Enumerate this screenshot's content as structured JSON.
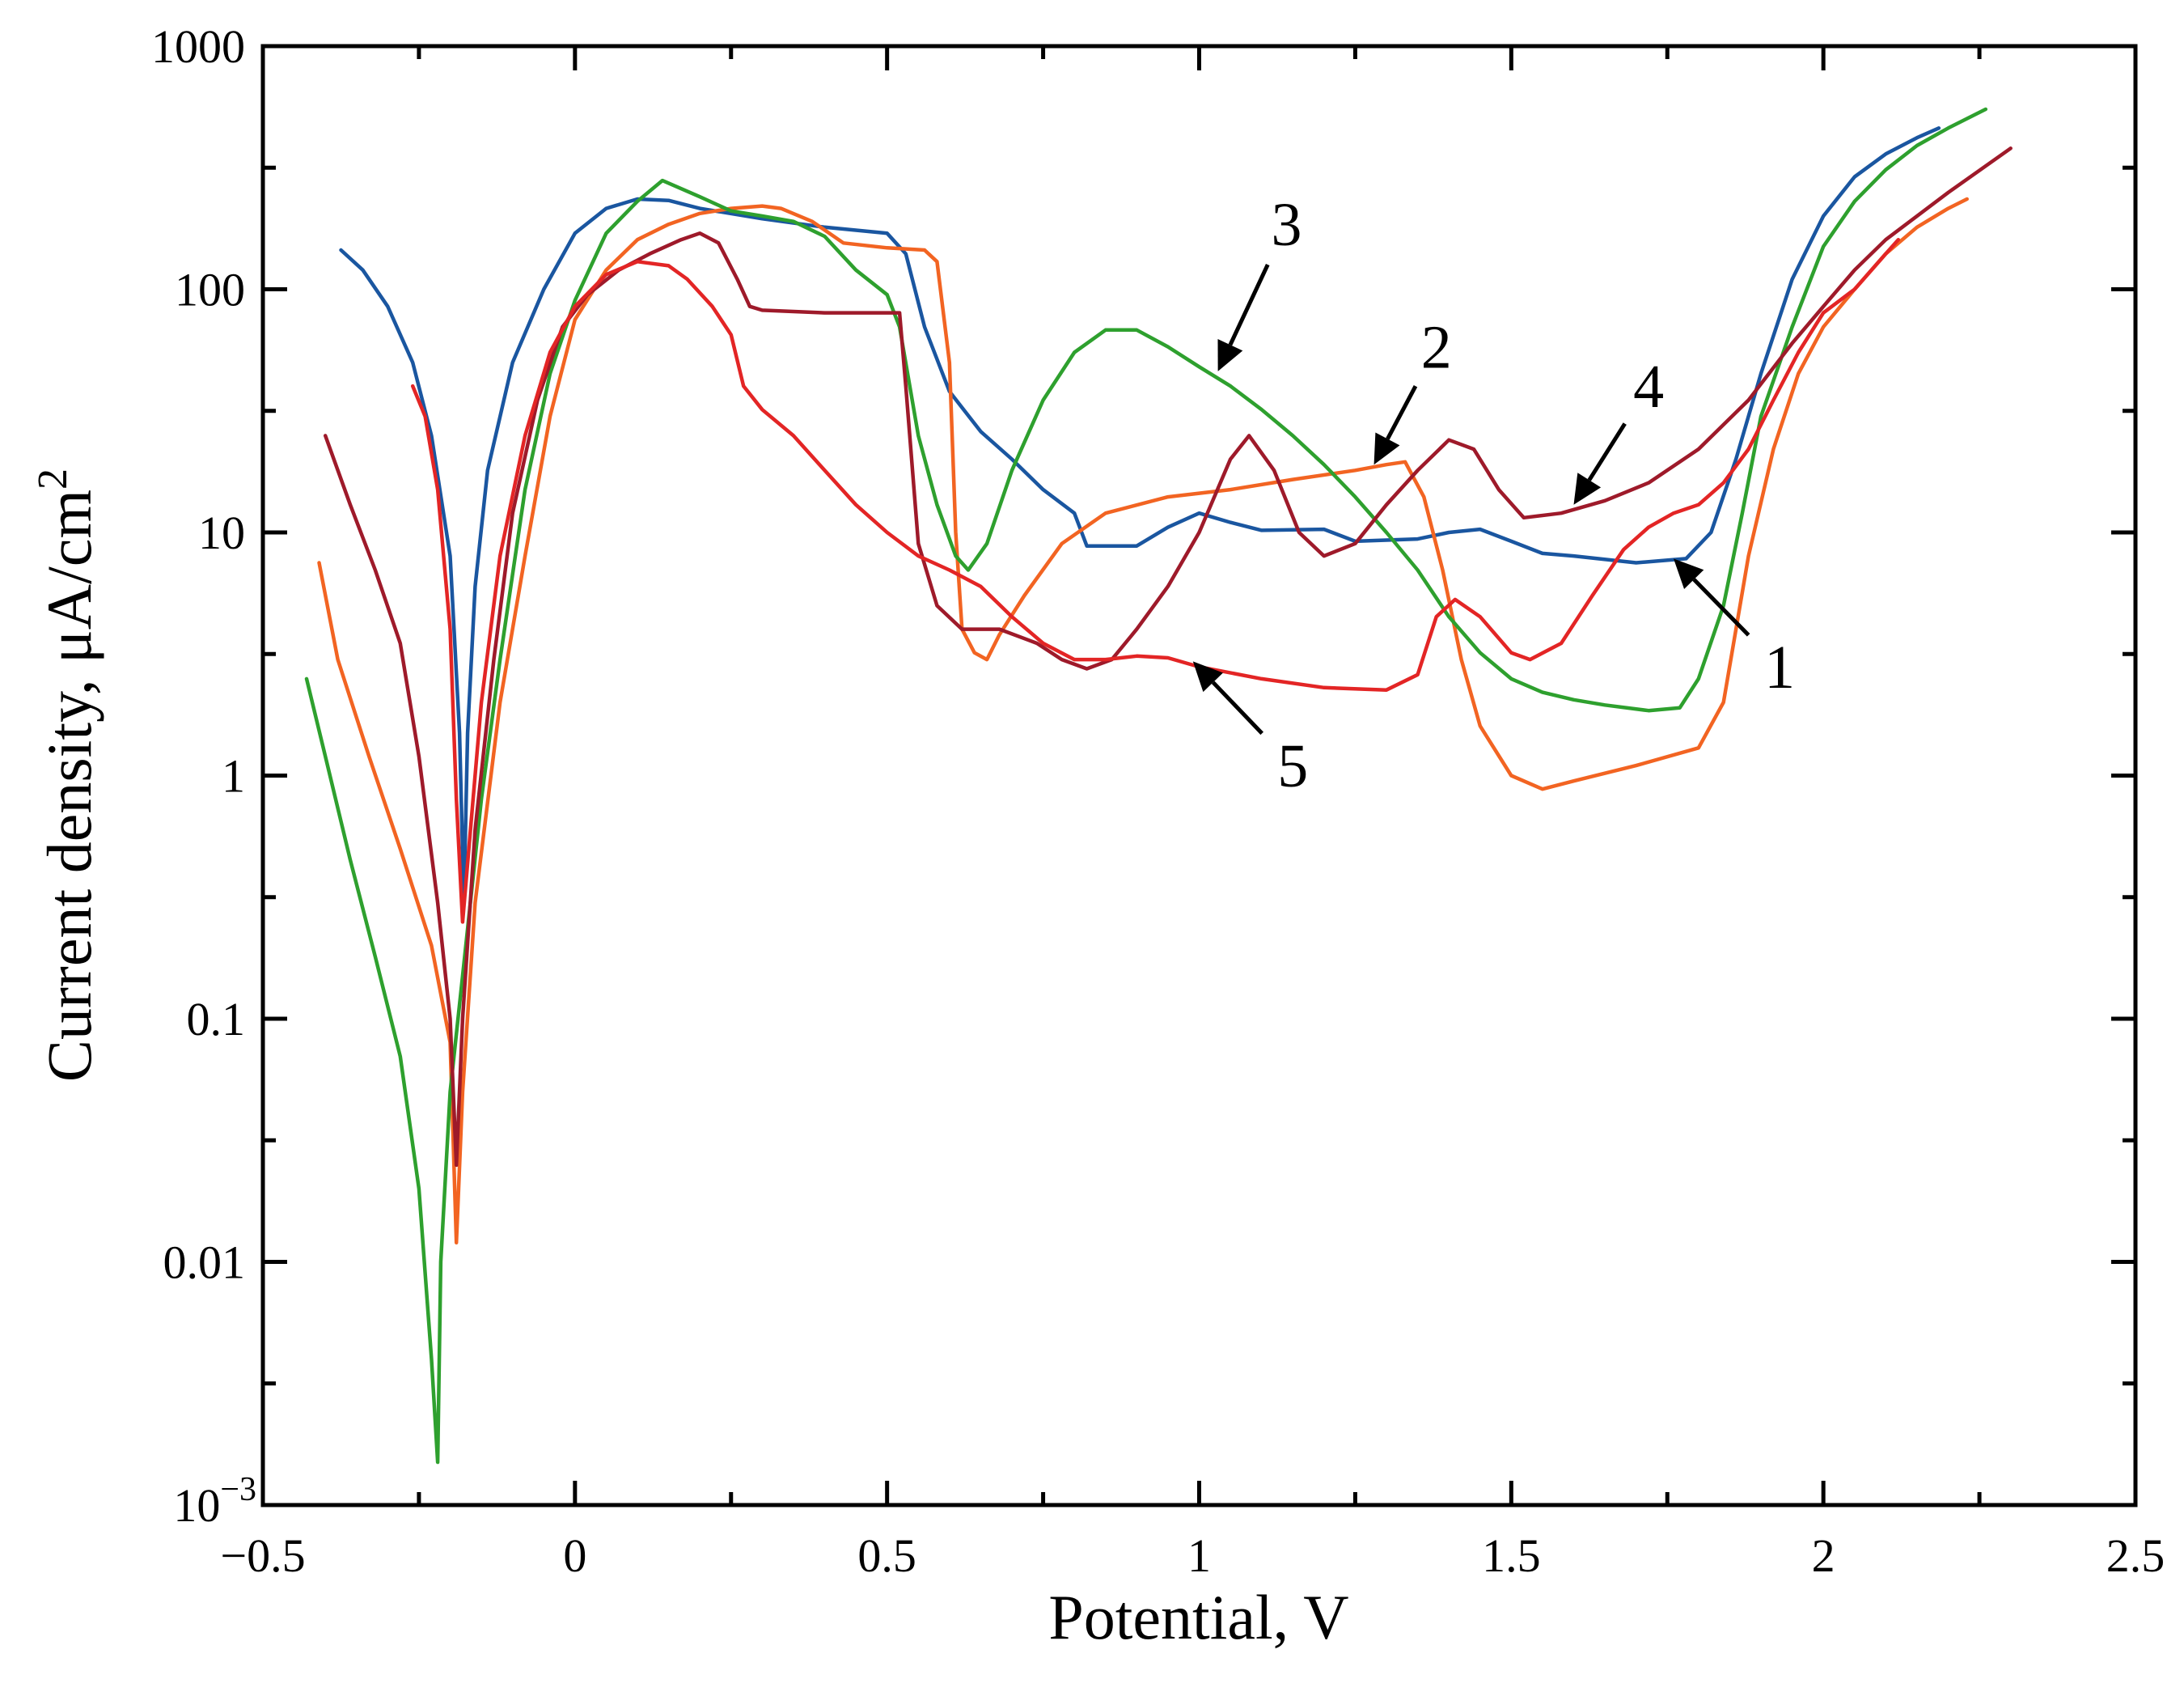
{
  "chart_data": {
    "type": "line",
    "xlabel": "Potential, V",
    "ylabel": "Current density, μA/cm",
    "ylabel_sup": "2",
    "xlim": [
      -0.5,
      2.5
    ],
    "ylim": [
      0.001,
      1000
    ],
    "yscale": "log",
    "grid": false,
    "x_ticks": [
      {
        "value": -0.5,
        "label": "−0.5"
      },
      {
        "value": 0,
        "label": "0"
      },
      {
        "value": 0.5,
        "label": "0.5"
      },
      {
        "value": 1,
        "label": "1"
      },
      {
        "value": 1.5,
        "label": "1.5"
      },
      {
        "value": 2,
        "label": "2"
      },
      {
        "value": 2.5,
        "label": "2.5"
      }
    ],
    "y_ticks": [
      {
        "value": 0.001,
        "label": "10",
        "sup": "−3"
      },
      {
        "value": 0.01,
        "label": "0.01"
      },
      {
        "value": 0.1,
        "label": "0.1"
      },
      {
        "value": 1,
        "label": "1"
      },
      {
        "value": 10,
        "label": "10"
      },
      {
        "value": 100,
        "label": "100"
      },
      {
        "value": 1000,
        "label": "1000"
      }
    ],
    "series": [
      {
        "name": "1",
        "color": "#1a56a0",
        "points": [
          [
            -0.375,
            145
          ],
          [
            -0.34,
            120
          ],
          [
            -0.3,
            85
          ],
          [
            -0.26,
            50
          ],
          [
            -0.23,
            25
          ],
          [
            -0.2,
            8
          ],
          [
            -0.185,
            1.5
          ],
          [
            -0.178,
            0.3
          ],
          [
            -0.172,
            1.5
          ],
          [
            -0.16,
            6
          ],
          [
            -0.14,
            18
          ],
          [
            -0.1,
            50
          ],
          [
            -0.05,
            100
          ],
          [
            0,
            170
          ],
          [
            0.05,
            215
          ],
          [
            0.1,
            235
          ],
          [
            0.15,
            232
          ],
          [
            0.2,
            215
          ],
          [
            0.3,
            195
          ],
          [
            0.4,
            180
          ],
          [
            0.5,
            170
          ],
          [
            0.53,
            140
          ],
          [
            0.56,
            70
          ],
          [
            0.6,
            38
          ],
          [
            0.65,
            26
          ],
          [
            0.7,
            20
          ],
          [
            0.75,
            15
          ],
          [
            0.8,
            12
          ],
          [
            0.82,
            8.8
          ],
          [
            0.9,
            8.8
          ],
          [
            0.95,
            10.5
          ],
          [
            1.0,
            12
          ],
          [
            1.05,
            11
          ],
          [
            1.1,
            10.2
          ],
          [
            1.2,
            10.3
          ],
          [
            1.25,
            9.2
          ],
          [
            1.35,
            9.4
          ],
          [
            1.4,
            10
          ],
          [
            1.45,
            10.3
          ],
          [
            1.5,
            9.2
          ],
          [
            1.55,
            8.2
          ],
          [
            1.6,
            8
          ],
          [
            1.7,
            7.5
          ],
          [
            1.78,
            7.8
          ],
          [
            1.82,
            10
          ],
          [
            1.86,
            20
          ],
          [
            1.9,
            45
          ],
          [
            1.95,
            110
          ],
          [
            2.0,
            200
          ],
          [
            2.05,
            290
          ],
          [
            2.1,
            360
          ],
          [
            2.15,
            420
          ],
          [
            2.185,
            460
          ]
        ]
      },
      {
        "name": "2",
        "color": "#f26422",
        "points": [
          [
            -0.41,
            7.5
          ],
          [
            -0.38,
            3
          ],
          [
            -0.33,
            1.2
          ],
          [
            -0.28,
            0.5
          ],
          [
            -0.23,
            0.2
          ],
          [
            -0.2,
            0.08
          ],
          [
            -0.19,
            0.012
          ],
          [
            -0.18,
            0.05
          ],
          [
            -0.16,
            0.3
          ],
          [
            -0.12,
            2
          ],
          [
            -0.08,
            8
          ],
          [
            -0.04,
            30
          ],
          [
            0,
            75
          ],
          [
            0.05,
            120
          ],
          [
            0.1,
            160
          ],
          [
            0.15,
            185
          ],
          [
            0.2,
            205
          ],
          [
            0.25,
            215
          ],
          [
            0.3,
            220
          ],
          [
            0.33,
            215
          ],
          [
            0.38,
            190
          ],
          [
            0.43,
            155
          ],
          [
            0.5,
            148
          ],
          [
            0.56,
            145
          ],
          [
            0.58,
            130
          ],
          [
            0.6,
            50
          ],
          [
            0.61,
            10
          ],
          [
            0.62,
            4
          ],
          [
            0.64,
            3.2
          ],
          [
            0.66,
            3
          ],
          [
            0.68,
            3.8
          ],
          [
            0.72,
            5.5
          ],
          [
            0.78,
            9
          ],
          [
            0.85,
            12
          ],
          [
            0.95,
            14
          ],
          [
            1.05,
            15
          ],
          [
            1.15,
            16.5
          ],
          [
            1.25,
            18
          ],
          [
            1.3,
            19
          ],
          [
            1.33,
            19.5
          ],
          [
            1.36,
            14
          ],
          [
            1.39,
            7
          ],
          [
            1.42,
            3
          ],
          [
            1.45,
            1.6
          ],
          [
            1.5,
            1
          ],
          [
            1.55,
            0.88
          ],
          [
            1.6,
            0.95
          ],
          [
            1.7,
            1.1
          ],
          [
            1.8,
            1.3
          ],
          [
            1.84,
            2
          ],
          [
            1.88,
            8
          ],
          [
            1.92,
            22
          ],
          [
            1.96,
            45
          ],
          [
            2.0,
            70
          ],
          [
            2.05,
            100
          ],
          [
            2.1,
            140
          ],
          [
            2.15,
            180
          ],
          [
            2.2,
            215
          ],
          [
            2.23,
            235
          ]
        ]
      },
      {
        "name": "3",
        "color": "#2ea02e",
        "points": [
          [
            -0.43,
            2.5
          ],
          [
            -0.4,
            1.2
          ],
          [
            -0.36,
            0.45
          ],
          [
            -0.32,
            0.18
          ],
          [
            -0.28,
            0.07
          ],
          [
            -0.25,
            0.02
          ],
          [
            -0.23,
            0.004
          ],
          [
            -0.22,
            0.0015
          ],
          [
            -0.215,
            0.01
          ],
          [
            -0.2,
            0.05
          ],
          [
            -0.18,
            0.15
          ],
          [
            -0.15,
            0.8
          ],
          [
            -0.12,
            3
          ],
          [
            -0.08,
            15
          ],
          [
            -0.04,
            45
          ],
          [
            0,
            90
          ],
          [
            0.05,
            170
          ],
          [
            0.1,
            230
          ],
          [
            0.14,
            280
          ],
          [
            0.2,
            240
          ],
          [
            0.25,
            210
          ],
          [
            0.3,
            200
          ],
          [
            0.35,
            190
          ],
          [
            0.4,
            165
          ],
          [
            0.45,
            120
          ],
          [
            0.5,
            95
          ],
          [
            0.52,
            70
          ],
          [
            0.55,
            25
          ],
          [
            0.58,
            13
          ],
          [
            0.61,
            8
          ],
          [
            0.63,
            7
          ],
          [
            0.66,
            9
          ],
          [
            0.7,
            18
          ],
          [
            0.75,
            35
          ],
          [
            0.8,
            55
          ],
          [
            0.85,
            68
          ],
          [
            0.9,
            68
          ],
          [
            0.95,
            58
          ],
          [
            1.0,
            48
          ],
          [
            1.05,
            40
          ],
          [
            1.1,
            32
          ],
          [
            1.15,
            25
          ],
          [
            1.2,
            19
          ],
          [
            1.25,
            14
          ],
          [
            1.3,
            10
          ],
          [
            1.35,
            7
          ],
          [
            1.4,
            4.5
          ],
          [
            1.45,
            3.2
          ],
          [
            1.5,
            2.5
          ],
          [
            1.55,
            2.2
          ],
          [
            1.6,
            2.05
          ],
          [
            1.65,
            1.95
          ],
          [
            1.72,
            1.85
          ],
          [
            1.77,
            1.9
          ],
          [
            1.8,
            2.5
          ],
          [
            1.84,
            5
          ],
          [
            1.87,
            12
          ],
          [
            1.9,
            30
          ],
          [
            1.95,
            70
          ],
          [
            2.0,
            150
          ],
          [
            2.05,
            230
          ],
          [
            2.1,
            310
          ],
          [
            2.15,
            390
          ],
          [
            2.2,
            460
          ],
          [
            2.26,
            550
          ]
        ]
      },
      {
        "name": "4",
        "color": "#9e1a2a",
        "points": [
          [
            -0.4,
            25
          ],
          [
            -0.36,
            13
          ],
          [
            -0.32,
            7
          ],
          [
            -0.28,
            3.5
          ],
          [
            -0.25,
            1.2
          ],
          [
            -0.22,
            0.3
          ],
          [
            -0.2,
            0.1
          ],
          [
            -0.19,
            0.025
          ],
          [
            -0.18,
            0.1
          ],
          [
            -0.16,
            0.6
          ],
          [
            -0.13,
            3
          ],
          [
            -0.1,
            12
          ],
          [
            -0.06,
            35
          ],
          [
            -0.02,
            70
          ],
          [
            0.02,
            95
          ],
          [
            0.07,
            120
          ],
          [
            0.12,
            140
          ],
          [
            0.17,
            160
          ],
          [
            0.2,
            170
          ],
          [
            0.23,
            155
          ],
          [
            0.26,
            110
          ],
          [
            0.28,
            85
          ],
          [
            0.3,
            82
          ],
          [
            0.4,
            80
          ],
          [
            0.52,
            80
          ],
          [
            0.53,
            40
          ],
          [
            0.55,
            9
          ],
          [
            0.58,
            5
          ],
          [
            0.62,
            4
          ],
          [
            0.68,
            4
          ],
          [
            0.74,
            3.5
          ],
          [
            0.78,
            3
          ],
          [
            0.82,
            2.75
          ],
          [
            0.86,
            3
          ],
          [
            0.9,
            4
          ],
          [
            0.95,
            6
          ],
          [
            1.0,
            10
          ],
          [
            1.05,
            20
          ],
          [
            1.08,
            25
          ],
          [
            1.12,
            18
          ],
          [
            1.16,
            10
          ],
          [
            1.2,
            8
          ],
          [
            1.25,
            9
          ],
          [
            1.3,
            13
          ],
          [
            1.35,
            18
          ],
          [
            1.4,
            24
          ],
          [
            1.44,
            22
          ],
          [
            1.48,
            15
          ],
          [
            1.52,
            11.5
          ],
          [
            1.58,
            12
          ],
          [
            1.65,
            13.5
          ],
          [
            1.72,
            16
          ],
          [
            1.8,
            22
          ],
          [
            1.88,
            35
          ],
          [
            1.95,
            60
          ],
          [
            2.0,
            85
          ],
          [
            2.05,
            120
          ],
          [
            2.1,
            160
          ],
          [
            2.2,
            250
          ],
          [
            2.3,
            380
          ]
        ]
      },
      {
        "name": "5",
        "color": "#e32525",
        "points": [
          [
            -0.26,
            40
          ],
          [
            -0.24,
            30
          ],
          [
            -0.22,
            15
          ],
          [
            -0.2,
            4
          ],
          [
            -0.19,
            0.8
          ],
          [
            -0.18,
            0.25
          ],
          [
            -0.17,
            0.5
          ],
          [
            -0.15,
            2
          ],
          [
            -0.12,
            8
          ],
          [
            -0.08,
            25
          ],
          [
            -0.04,
            55
          ],
          [
            0,
            85
          ],
          [
            0.05,
            115
          ],
          [
            0.1,
            130
          ],
          [
            0.15,
            125
          ],
          [
            0.18,
            110
          ],
          [
            0.22,
            85
          ],
          [
            0.25,
            65
          ],
          [
            0.27,
            40
          ],
          [
            0.3,
            32
          ],
          [
            0.35,
            25
          ],
          [
            0.4,
            18
          ],
          [
            0.45,
            13
          ],
          [
            0.5,
            10
          ],
          [
            0.55,
            8
          ],
          [
            0.6,
            7
          ],
          [
            0.65,
            6
          ],
          [
            0.7,
            4.5
          ],
          [
            0.75,
            3.5
          ],
          [
            0.8,
            3
          ],
          [
            0.85,
            3
          ],
          [
            0.9,
            3.1
          ],
          [
            0.95,
            3.05
          ],
          [
            1.0,
            2.8
          ],
          [
            1.1,
            2.5
          ],
          [
            1.2,
            2.3
          ],
          [
            1.3,
            2.25
          ],
          [
            1.35,
            2.6
          ],
          [
            1.38,
            4.5
          ],
          [
            1.41,
            5.3
          ],
          [
            1.45,
            4.5
          ],
          [
            1.5,
            3.2
          ],
          [
            1.53,
            3
          ],
          [
            1.58,
            3.5
          ],
          [
            1.63,
            5.5
          ],
          [
            1.68,
            8.5
          ],
          [
            1.72,
            10.5
          ],
          [
            1.76,
            12
          ],
          [
            1.8,
            13
          ],
          [
            1.84,
            16
          ],
          [
            1.88,
            22
          ],
          [
            1.92,
            35
          ],
          [
            1.96,
            55
          ],
          [
            2.0,
            80
          ],
          [
            2.05,
            100
          ],
          [
            2.1,
            140
          ],
          [
            2.12,
            160
          ]
        ]
      }
    ],
    "annotations": [
      {
        "text": "1",
        "target": [
          1.76,
          7.8
        ],
        "label_at": [
          1.93,
          2.8
        ]
      },
      {
        "text": "2",
        "target": [
          1.28,
          19
        ],
        "label_at": [
          1.38,
          58
        ]
      },
      {
        "text": "3",
        "target": [
          1.03,
          46
        ],
        "label_at": [
          1.14,
          185
        ]
      },
      {
        "text": "4",
        "target": [
          1.6,
          13
        ],
        "label_at": [
          1.72,
          40
        ]
      },
      {
        "text": "5",
        "target": [
          0.99,
          2.95
        ],
        "label_at": [
          1.15,
          1.1
        ]
      }
    ]
  }
}
